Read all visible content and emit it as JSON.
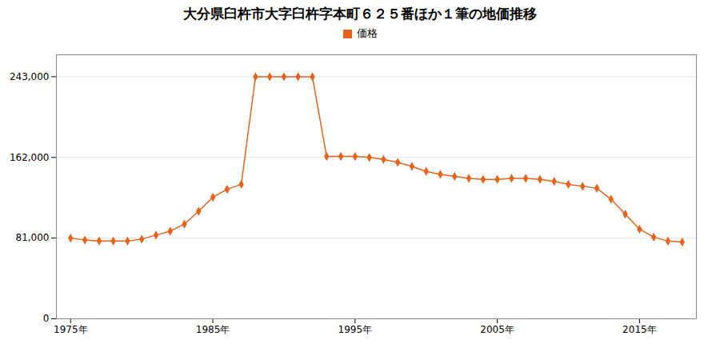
{
  "chart_data": {
    "type": "line",
    "title": "大分県臼杵市大字臼杵字本町６２５番ほか１筆の地価推移",
    "x": [
      1975,
      1976,
      1977,
      1978,
      1979,
      1980,
      1981,
      1982,
      1983,
      1984,
      1985,
      1986,
      1987,
      1988,
      1989,
      1990,
      1991,
      1992,
      1993,
      1994,
      1995,
      1996,
      1997,
      1998,
      1999,
      2000,
      2001,
      2002,
      2003,
      2004,
      2005,
      2006,
      2007,
      2008,
      2009,
      2010,
      2011,
      2012,
      2013,
      2014,
      2015,
      2016,
      2017,
      2018
    ],
    "series": [
      {
        "name": "価格",
        "color": "#e8621a",
        "marker": "diamond",
        "values": [
          81000,
          79000,
          78000,
          78000,
          78000,
          80000,
          84000,
          88000,
          95000,
          108000,
          122000,
          130000,
          135000,
          243000,
          243000,
          243000,
          243000,
          243000,
          163000,
          163000,
          163000,
          162000,
          160000,
          157000,
          153000,
          148000,
          145000,
          143000,
          141000,
          140000,
          140000,
          141000,
          141000,
          140000,
          138000,
          135000,
          133000,
          131000,
          120000,
          105000,
          90000,
          82000,
          78000,
          77000
        ]
      }
    ],
    "xlim": [
      1974,
      2019
    ],
    "xticks": [
      {
        "value": 1975,
        "label": "1975年"
      },
      {
        "value": 1985,
        "label": "1985年"
      },
      {
        "value": 1995,
        "label": "1995年"
      },
      {
        "value": 2005,
        "label": "2005年"
      },
      {
        "value": 2015,
        "label": "2015年"
      }
    ],
    "ylim": [
      0,
      265000
    ],
    "yticks": [
      0,
      {
        "value": 81000,
        "label": "81,000"
      },
      {
        "value": 162000,
        "label": "162,000"
      },
      {
        "value": 243000,
        "label": "243,000"
      }
    ],
    "grid": true,
    "legend": "top"
  }
}
